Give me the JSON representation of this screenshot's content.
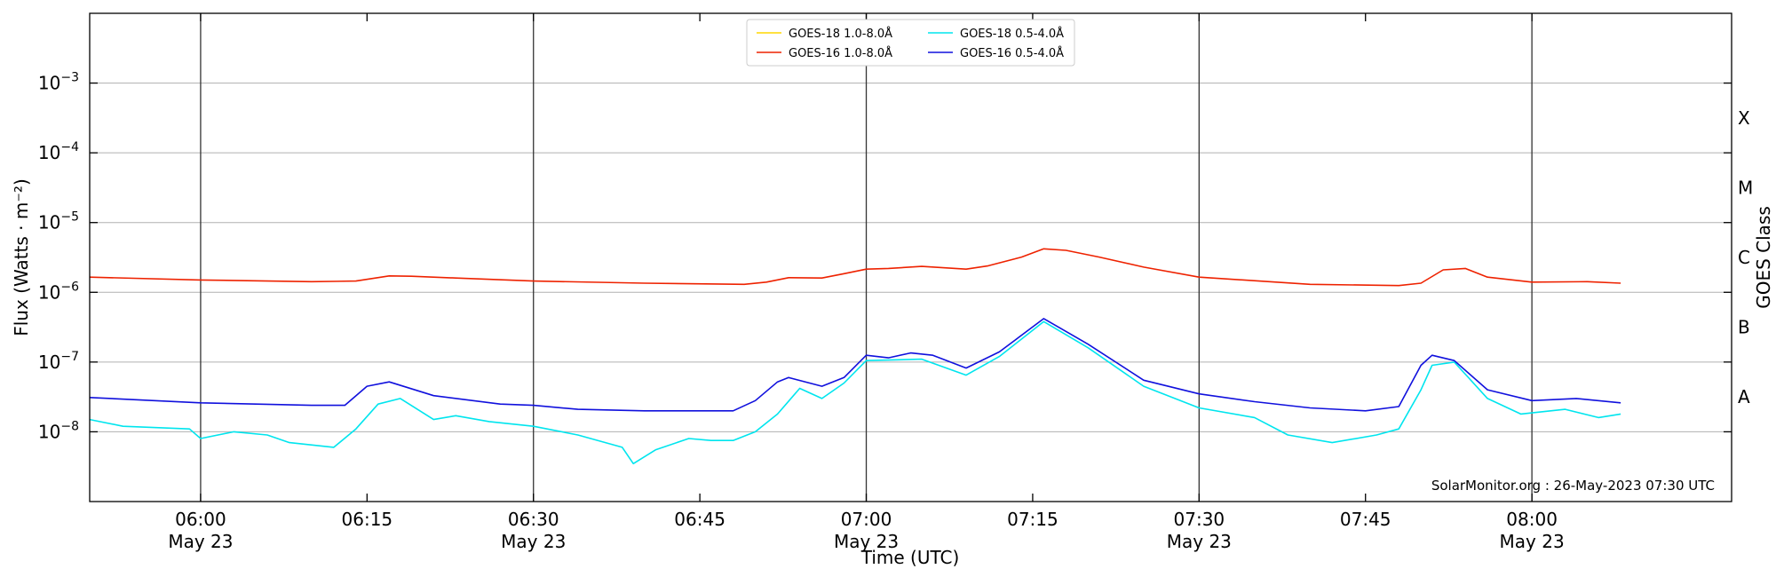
{
  "chart_data": {
    "type": "line",
    "xlabel": "Time (UTC)",
    "ylabel": "Flux (Watts · m⁻²)",
    "right_axis_label": "GOES Class",
    "credit": "SolarMonitor.org : 26-May-2023 07:30 UTC",
    "y_scale": "log",
    "ylim": [
      1e-09,
      0.01
    ],
    "xlim": [
      "2023-05-23 05:50",
      "2023-05-23 08:18"
    ],
    "grid": "horizontal at each decade",
    "legend_position": "top-center",
    "x_ticks": [
      {
        "t": "2023-05-23 06:00",
        "label": "06:00",
        "sublabel": "May 23"
      },
      {
        "t": "2023-05-23 06:15",
        "label": "06:15",
        "sublabel": ""
      },
      {
        "t": "2023-05-23 06:30",
        "label": "06:30",
        "sublabel": "May 23"
      },
      {
        "t": "2023-05-23 06:45",
        "label": "06:45",
        "sublabel": ""
      },
      {
        "t": "2023-05-23 07:00",
        "label": "07:00",
        "sublabel": "May 23"
      },
      {
        "t": "2023-05-23 07:15",
        "label": "07:15",
        "sublabel": ""
      },
      {
        "t": "2023-05-23 07:30",
        "label": "07:30",
        "sublabel": "May 23"
      },
      {
        "t": "2023-05-23 07:45",
        "label": "07:45",
        "sublabel": ""
      },
      {
        "t": "2023-05-23 08:00",
        "label": "08:00",
        "sublabel": "May 23"
      }
    ],
    "y_ticks": [
      {
        "value": 1e-08,
        "mantissa": "10",
        "exponent": "−8"
      },
      {
        "value": 1e-07,
        "mantissa": "10",
        "exponent": "−7"
      },
      {
        "value": 1e-06,
        "mantissa": "10",
        "exponent": "−6"
      },
      {
        "value": 1e-05,
        "mantissa": "10",
        "exponent": "−5"
      },
      {
        "value": 0.0001,
        "mantissa": "10",
        "exponent": "−4"
      },
      {
        "value": 0.001,
        "mantissa": "10",
        "exponent": "−3"
      }
    ],
    "goes_classes": [
      {
        "label": "A",
        "value": 3.16e-08
      },
      {
        "label": "B",
        "value": 3.16e-07
      },
      {
        "label": "C",
        "value": 3.16e-06
      },
      {
        "label": "M",
        "value": 3.16e-05
      },
      {
        "label": "X",
        "value": 0.000316
      }
    ],
    "marker_lines": [
      "2023-05-23 06:00",
      "2023-05-23 06:30",
      "2023-05-23 07:00",
      "2023-05-23 07:30",
      "2023-05-23 08:00"
    ],
    "series": [
      {
        "name": "GOES-18 1.0-8.0Å",
        "color": "#ffd700",
        "x": [],
        "y": []
      },
      {
        "name": "GOES-16 1.0-8.0Å",
        "color": "#ee2200",
        "x": [
          "2023-05-23 05:50",
          "2023-05-23 06:00",
          "2023-05-23 06:10",
          "2023-05-23 06:14",
          "2023-05-23 06:17",
          "2023-05-23 06:19",
          "2023-05-23 06:23",
          "2023-05-23 06:30",
          "2023-05-23 06:40",
          "2023-05-23 06:49",
          "2023-05-23 06:51",
          "2023-05-23 06:53",
          "2023-05-23 06:56",
          "2023-05-23 06:58",
          "2023-05-23 07:00",
          "2023-05-23 07:02",
          "2023-05-23 07:05",
          "2023-05-23 07:09",
          "2023-05-23 07:11",
          "2023-05-23 07:14",
          "2023-05-23 07:16",
          "2023-05-23 07:18",
          "2023-05-23 07:21",
          "2023-05-23 07:25",
          "2023-05-23 07:30",
          "2023-05-23 07:40",
          "2023-05-23 07:48",
          "2023-05-23 07:50",
          "2023-05-23 07:52",
          "2023-05-23 07:54",
          "2023-05-23 07:56",
          "2023-05-23 08:00",
          "2023-05-23 08:05",
          "2023-05-23 08:08"
        ],
        "y": [
          1.65e-06,
          1.5e-06,
          1.42e-06,
          1.45e-06,
          1.72e-06,
          1.7e-06,
          1.6e-06,
          1.45e-06,
          1.35e-06,
          1.3e-06,
          1.4e-06,
          1.62e-06,
          1.6e-06,
          1.85e-06,
          2.15e-06,
          2.2e-06,
          2.35e-06,
          2.15e-06,
          2.4e-06,
          3.2e-06,
          4.2e-06,
          4e-06,
          3.2e-06,
          2.3e-06,
          1.65e-06,
          1.3e-06,
          1.25e-06,
          1.35e-06,
          2.1e-06,
          2.2e-06,
          1.65e-06,
          1.4e-06,
          1.42e-06,
          1.35e-06
        ]
      },
      {
        "name": "GOES-18 0.5-4.0Å",
        "color": "#00e5ee",
        "x": [
          "2023-05-23 05:50",
          "2023-05-23 05:53",
          "2023-05-23 05:59",
          "2023-05-23 06:00",
          "2023-05-23 06:03",
          "2023-05-23 06:06",
          "2023-05-23 06:08",
          "2023-05-23 06:12",
          "2023-05-23 06:14",
          "2023-05-23 06:16",
          "2023-05-23 06:18",
          "2023-05-23 06:21",
          "2023-05-23 06:23",
          "2023-05-23 06:26",
          "2023-05-23 06:30",
          "2023-05-23 06:34",
          "2023-05-23 06:38",
          "2023-05-23 06:39",
          "2023-05-23 06:41",
          "2023-05-23 06:44",
          "2023-05-23 06:46",
          "2023-05-23 06:48",
          "2023-05-23 06:50",
          "2023-05-23 06:52",
          "2023-05-23 06:54",
          "2023-05-23 06:56",
          "2023-05-23 06:58",
          "2023-05-23 07:00",
          "2023-05-23 07:05",
          "2023-05-23 07:09",
          "2023-05-23 07:12",
          "2023-05-23 07:16",
          "2023-05-23 07:20",
          "2023-05-23 07:25",
          "2023-05-23 07:30",
          "2023-05-23 07:35",
          "2023-05-23 07:38",
          "2023-05-23 07:42",
          "2023-05-23 07:46",
          "2023-05-23 07:48",
          "2023-05-23 07:50",
          "2023-05-23 07:51",
          "2023-05-23 07:53",
          "2023-05-23 07:56",
          "2023-05-23 07:59",
          "2023-05-23 08:03",
          "2023-05-23 08:06",
          "2023-05-23 08:08"
        ],
        "y": [
          1.5e-08,
          1.2e-08,
          1.1e-08,
          8e-09,
          1e-08,
          9e-09,
          7e-09,
          6e-09,
          1.1e-08,
          2.5e-08,
          3e-08,
          1.5e-08,
          1.7e-08,
          1.4e-08,
          1.2e-08,
          9e-09,
          6e-09,
          3.5e-09,
          5.5e-09,
          8e-09,
          7.5e-09,
          7.5e-09,
          1e-08,
          1.8e-08,
          4.2e-08,
          3e-08,
          5e-08,
          1.05e-07,
          1.1e-07,
          6.5e-08,
          1.2e-07,
          3.8e-07,
          1.6e-07,
          4.5e-08,
          2.2e-08,
          1.6e-08,
          9e-09,
          7e-09,
          9e-09,
          1.1e-08,
          4e-08,
          9e-08,
          1e-07,
          3e-08,
          1.8e-08,
          2.1e-08,
          1.6e-08,
          1.8e-08
        ]
      },
      {
        "name": "GOES-16 0.5-4.0Å",
        "color": "#1010dd",
        "x": [
          "2023-05-23 05:50",
          "2023-05-23 06:00",
          "2023-05-23 06:10",
          "2023-05-23 06:13",
          "2023-05-23 06:15",
          "2023-05-23 06:17",
          "2023-05-23 06:21",
          "2023-05-23 06:27",
          "2023-05-23 06:30",
          "2023-05-23 06:34",
          "2023-05-23 06:40",
          "2023-05-23 06:48",
          "2023-05-23 06:50",
          "2023-05-23 06:52",
          "2023-05-23 06:53",
          "2023-05-23 06:56",
          "2023-05-23 06:58",
          "2023-05-23 07:00",
          "2023-05-23 07:02",
          "2023-05-23 07:04",
          "2023-05-23 07:06",
          "2023-05-23 07:09",
          "2023-05-23 07:12",
          "2023-05-23 07:16",
          "2023-05-23 07:20",
          "2023-05-23 07:25",
          "2023-05-23 07:30",
          "2023-05-23 07:35",
          "2023-05-23 07:40",
          "2023-05-23 07:45",
          "2023-05-23 07:48",
          "2023-05-23 07:50",
          "2023-05-23 07:51",
          "2023-05-23 07:53",
          "2023-05-23 07:56",
          "2023-05-23 08:00",
          "2023-05-23 08:04",
          "2023-05-23 08:08"
        ],
        "y": [
          3.1e-08,
          2.6e-08,
          2.4e-08,
          2.4e-08,
          4.5e-08,
          5.2e-08,
          3.3e-08,
          2.5e-08,
          2.4e-08,
          2.1e-08,
          2e-08,
          2e-08,
          2.8e-08,
          5.2e-08,
          6e-08,
          4.5e-08,
          6e-08,
          1.25e-07,
          1.15e-07,
          1.35e-07,
          1.25e-07,
          8.2e-08,
          1.4e-07,
          4.2e-07,
          1.8e-07,
          5.5e-08,
          3.5e-08,
          2.7e-08,
          2.2e-08,
          2e-08,
          2.3e-08,
          9e-08,
          1.25e-07,
          1.05e-07,
          4e-08,
          2.8e-08,
          3e-08,
          2.6e-08
        ]
      }
    ]
  }
}
